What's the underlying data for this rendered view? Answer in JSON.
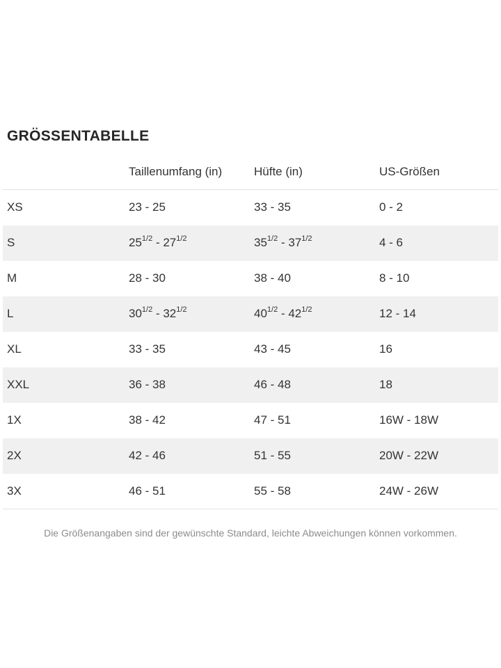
{
  "page": {
    "title": "GRÖSSENTABELLE",
    "footnote": "Die Größenangaben sind der gewünschte Standard, leichte Abweichungen können vorkommen."
  },
  "table": {
    "columns": [
      "",
      "Taillenumfang (in)",
      "Hüfte (in)",
      "US-Größen"
    ],
    "rows": [
      {
        "size": "XS",
        "waist": "23 - 25",
        "hip": "33 - 35",
        "us": "0 - 2"
      },
      {
        "size": "S",
        "waist": "25½ - 27½",
        "hip": "35½ - 37½",
        "us": "4 - 6"
      },
      {
        "size": "M",
        "waist": "28 - 30",
        "hip": "38 - 40",
        "us": "8 - 10"
      },
      {
        "size": "L",
        "waist": "30½ - 32½",
        "hip": "40½ - 42½",
        "us": "12 - 14"
      },
      {
        "size": "XL",
        "waist": "33 - 35",
        "hip": "43 - 45",
        "us": "16"
      },
      {
        "size": "XXL",
        "waist": "36 - 38",
        "hip": "46 - 48",
        "us": "18"
      },
      {
        "size": "1X",
        "waist": "38 - 42",
        "hip": "47 - 51",
        "us": "16W - 18W"
      },
      {
        "size": "2X",
        "waist": "42 - 46",
        "hip": "51 - 55",
        "us": "20W - 22W"
      },
      {
        "size": "3X",
        "waist": "46 - 51",
        "hip": "55 - 58",
        "us": "24W - 26W"
      }
    ]
  },
  "colors": {
    "title_text": "#262626",
    "body_text": "#333333",
    "row_stripe": "#f0f0f0",
    "rule": "#e2e2e2",
    "footnote_text": "#8c8c8c"
  }
}
